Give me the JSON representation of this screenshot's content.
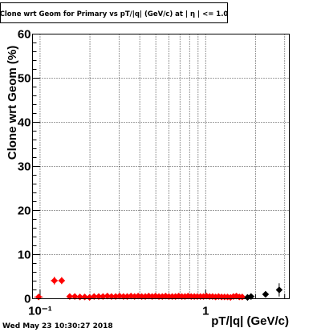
{
  "title": "Clone wrt Geom for Primary vs pT/|q| (GeV/c) at | η | <= 1.0",
  "timestamp": "Wed May 23 10:30:27 2018",
  "chart_data": {
    "type": "scatter",
    "title": "Clone wrt Geom for Primary vs pT/|q| (GeV/c) at | η | <= 1.0",
    "xlabel": "pT/|q| (GeV/c)",
    "ylabel": "Clone wrt Geom (%)",
    "x_scale": "log",
    "xlim": [
      0.09,
      3.2
    ],
    "ylim": [
      0,
      60
    ],
    "grid": true,
    "yticks": [
      0,
      10,
      20,
      30,
      40,
      50,
      60
    ],
    "yticks_labels": [
      "0",
      "10",
      "20",
      "30",
      "40",
      "50",
      "60"
    ],
    "xticks": [
      0.1,
      1
    ],
    "xticks_labels": [
      "10⁻¹",
      "1"
    ],
    "colors": {
      "primary": "#ff0000",
      "secondary": "#000000"
    },
    "series": [
      {
        "color": "#ff0000",
        "marker": "diamond",
        "points": [
          [
            0.098,
            0.4,
            0.006,
            0.3
          ],
          [
            0.122,
            4.1,
            0.006,
            0.9
          ],
          [
            0.135,
            4.1,
            0.006,
            0.8
          ],
          [
            0.151,
            0.5,
            0.005,
            0.2
          ],
          [
            0.162,
            0.5,
            0.005,
            0.2
          ],
          [
            0.174,
            0.4,
            0.005,
            0.2
          ],
          [
            0.186,
            0.4,
            0.005,
            0.2
          ],
          [
            0.199,
            0.3,
            0.005,
            0.2
          ],
          [
            0.212,
            0.5,
            0.005,
            0.2
          ],
          [
            0.226,
            0.5,
            0.005,
            0.2
          ],
          [
            0.24,
            0.5,
            0.005,
            0.2
          ],
          [
            0.255,
            0.6,
            0.005,
            0.2
          ],
          [
            0.27,
            0.5,
            0.005,
            0.2
          ],
          [
            0.286,
            0.5,
            0.005,
            0.2
          ],
          [
            0.302,
            0.6,
            0.005,
            0.2
          ],
          [
            0.319,
            0.5,
            0.005,
            0.2
          ],
          [
            0.336,
            0.5,
            0.005,
            0.2
          ],
          [
            0.354,
            0.6,
            0.005,
            0.2
          ],
          [
            0.372,
            0.5,
            0.005,
            0.2
          ],
          [
            0.391,
            0.6,
            0.005,
            0.2
          ],
          [
            0.411,
            0.5,
            0.005,
            0.2
          ],
          [
            0.432,
            0.5,
            0.005,
            0.2
          ],
          [
            0.453,
            0.6,
            0.005,
            0.2
          ],
          [
            0.475,
            0.5,
            0.005,
            0.2
          ],
          [
            0.498,
            0.6,
            0.005,
            0.2
          ],
          [
            0.522,
            0.5,
            0.005,
            0.2
          ],
          [
            0.547,
            0.5,
            0.005,
            0.2
          ],
          [
            0.573,
            0.6,
            0.005,
            0.2
          ],
          [
            0.6,
            0.5,
            0.005,
            0.2
          ],
          [
            0.628,
            0.5,
            0.005,
            0.2
          ],
          [
            0.657,
            0.5,
            0.005,
            0.2
          ],
          [
            0.687,
            0.6,
            0.005,
            0.2
          ],
          [
            0.718,
            0.5,
            0.005,
            0.2
          ],
          [
            0.75,
            0.5,
            0.005,
            0.2
          ],
          [
            0.783,
            0.6,
            0.005,
            0.2
          ],
          [
            0.818,
            0.5,
            0.005,
            0.2
          ],
          [
            0.854,
            0.5,
            0.005,
            0.2
          ],
          [
            0.891,
            0.5,
            0.005,
            0.2
          ],
          [
            0.93,
            0.5,
            0.005,
            0.2
          ],
          [
            0.97,
            0.5,
            0.005,
            0.2
          ],
          [
            1.012,
            0.6,
            0.005,
            0.2
          ],
          [
            1.056,
            0.5,
            0.005,
            0.2
          ],
          [
            1.101,
            0.5,
            0.005,
            0.2
          ],
          [
            1.148,
            0.4,
            0.005,
            0.2
          ],
          [
            1.197,
            0.5,
            0.005,
            0.2
          ],
          [
            1.248,
            0.4,
            0.005,
            0.2
          ],
          [
            1.301,
            0.4,
            0.005,
            0.2
          ],
          [
            1.356,
            0.4,
            0.005,
            0.2
          ],
          [
            1.413,
            0.3,
            0.005,
            0.2
          ],
          [
            1.472,
            0.5,
            0.005,
            0.2
          ],
          [
            1.533,
            0.6,
            0.005,
            0.3
          ],
          [
            1.597,
            0.4,
            0.005,
            0.3
          ],
          [
            1.663,
            0.4,
            0.005,
            0.3
          ]
        ]
      },
      {
        "color": "#000000",
        "marker": "diamond",
        "points": [
          [
            1.79,
            0.3,
            0.005,
            0.3
          ],
          [
            1.88,
            0.5,
            0.005,
            0.4
          ],
          [
            2.3,
            1.0,
            0.006,
            0.7
          ],
          [
            2.78,
            2.0,
            0.006,
            1.5
          ]
        ]
      }
    ]
  }
}
